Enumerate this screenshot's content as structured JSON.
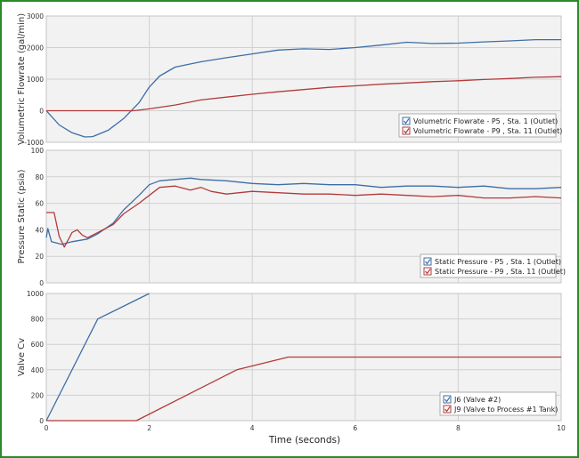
{
  "chart_data": [
    {
      "type": "line",
      "ylabel": "Volumetric Flowrate (gal/min)",
      "ylim": [
        -1000,
        3000
      ],
      "yticks": [
        -1000,
        0,
        1000,
        2000,
        3000
      ],
      "xlim": [
        0,
        10
      ],
      "xticks": [
        0,
        2,
        4,
        6,
        8,
        10
      ],
      "grid": true,
      "legend_position": "bottom-right",
      "series": [
        {
          "name": "Volumetric Flowrate - P5 , Sta. 1 (Outlet)",
          "color": "#3d6ea5",
          "x": [
            0,
            0.25,
            0.5,
            0.75,
            0.9,
            1.2,
            1.5,
            1.8,
            2.0,
            2.2,
            2.5,
            3.0,
            3.5,
            4.0,
            4.5,
            5.0,
            5.5,
            6.0,
            6.5,
            7.0,
            7.5,
            8.0,
            8.5,
            9.0,
            9.5,
            10.0
          ],
          "y": [
            0,
            -450,
            -700,
            -830,
            -820,
            -620,
            -250,
            250,
            750,
            1100,
            1380,
            1550,
            1680,
            1800,
            1920,
            1960,
            1940,
            2000,
            2080,
            2170,
            2130,
            2140,
            2180,
            2210,
            2250,
            2250
          ]
        },
        {
          "name": "Volumetric Flowrate - P9 , Sta. 11 (Outlet)",
          "color": "#b33a3a",
          "x": [
            0,
            1.7,
            2.0,
            2.5,
            3.0,
            3.5,
            4.0,
            4.5,
            5.0,
            5.5,
            6.0,
            6.5,
            7.0,
            7.5,
            8.0,
            8.5,
            9.0,
            9.5,
            10.0
          ],
          "y": [
            0,
            0,
            60,
            180,
            340,
            430,
            520,
            600,
            670,
            740,
            790,
            840,
            880,
            920,
            950,
            990,
            1020,
            1060,
            1080
          ]
        }
      ]
    },
    {
      "type": "line",
      "ylabel": "Pressure Static (psia)",
      "ylim": [
        0,
        100
      ],
      "yticks": [
        0,
        20,
        40,
        60,
        80,
        100
      ],
      "xlim": [
        0,
        10
      ],
      "xticks": [
        0,
        2,
        4,
        6,
        8,
        10
      ],
      "grid": true,
      "legend_position": "bottom-right",
      "series": [
        {
          "name": "Static Pressure - P5 , Sta. 1 (Outlet)",
          "color": "#3d6ea5",
          "x": [
            0,
            0.03,
            0.1,
            0.2,
            0.3,
            0.4,
            0.5,
            0.8,
            1.0,
            1.3,
            1.5,
            1.8,
            2.0,
            2.2,
            2.5,
            2.8,
            3.0,
            3.5,
            4.0,
            4.5,
            5.0,
            5.5,
            6.0,
            6.5,
            7.0,
            7.5,
            8.0,
            8.5,
            9.0,
            9.5,
            10.0
          ],
          "y": [
            34,
            41,
            31,
            30,
            29,
            30,
            31,
            33,
            37,
            45,
            55,
            66,
            74,
            77,
            78,
            79,
            78,
            77,
            75,
            74,
            75,
            74,
            74,
            72,
            73,
            73,
            72,
            73,
            71,
            71,
            72
          ]
        },
        {
          "name": "Static Pressure - P9 , Sta. 11 (Outlet)",
          "color": "#b33a3a",
          "x": [
            0,
            0.05,
            0.15,
            0.25,
            0.35,
            0.5,
            0.6,
            0.7,
            0.8,
            1.0,
            1.3,
            1.5,
            1.8,
            2.0,
            2.2,
            2.5,
            2.8,
            3.0,
            3.2,
            3.5,
            4.0,
            4.5,
            5.0,
            5.5,
            6.0,
            6.5,
            7.0,
            7.5,
            8.0,
            8.5,
            9.0,
            9.5,
            10.0
          ],
          "y": [
            53,
            53,
            53,
            35,
            27,
            38,
            40,
            36,
            34,
            38,
            44,
            52,
            60,
            66,
            72,
            73,
            70,
            72,
            69,
            67,
            69,
            68,
            67,
            67,
            66,
            67,
            66,
            65,
            66,
            64,
            64,
            65,
            64
          ]
        }
      ]
    },
    {
      "type": "line",
      "ylabel": "Valve Cv",
      "ylim": [
        0,
        1000
      ],
      "yticks": [
        0,
        200,
        400,
        600,
        800,
        1000
      ],
      "xlim": [
        0,
        10
      ],
      "xticks": [
        0,
        2,
        4,
        6,
        8,
        10
      ],
      "xticklabels": [
        "0",
        "2",
        "4",
        "6",
        "8",
        "10"
      ],
      "xlabel": "Time (seconds)",
      "grid": true,
      "legend_position": "bottom-right",
      "series": [
        {
          "name": "J6 (Valve #2)",
          "color": "#3d6ea5",
          "x": [
            0,
            1.0,
            2.0
          ],
          "y": [
            0,
            800,
            1000
          ]
        },
        {
          "name": "J9 (Valve to Process #1 Tank)",
          "color": "#b33a3a",
          "x": [
            0,
            1.75,
            3.7,
            4.7,
            10.0
          ],
          "y": [
            0,
            0,
            400,
            500,
            500
          ]
        }
      ]
    }
  ]
}
